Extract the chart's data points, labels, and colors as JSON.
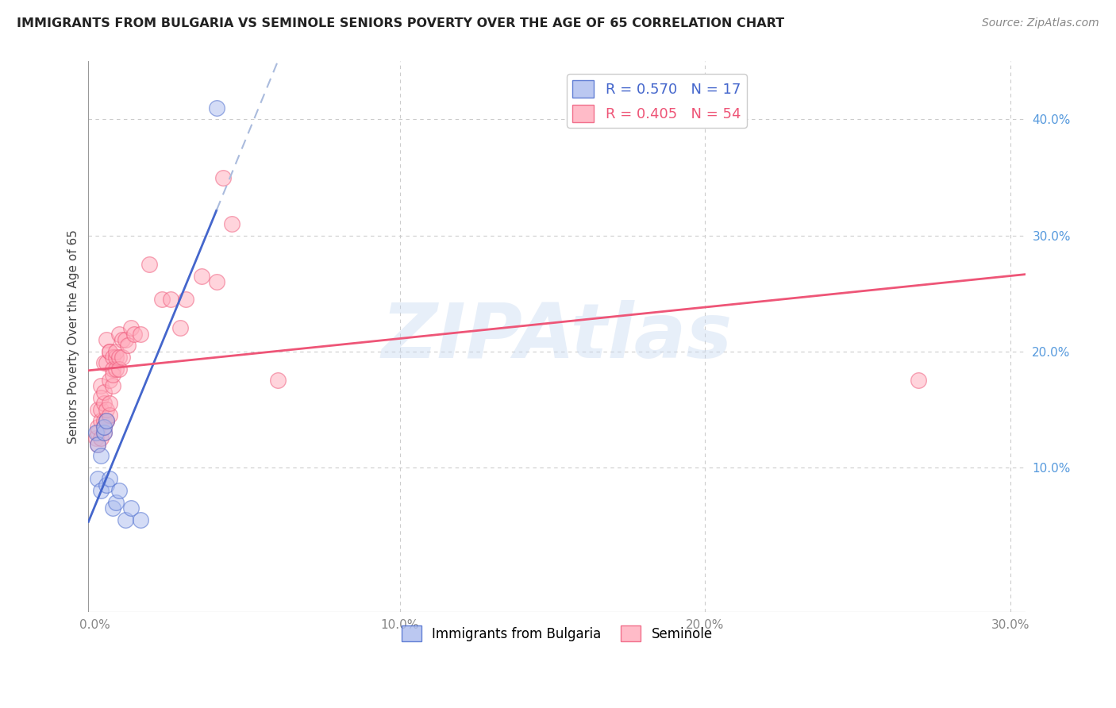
{
  "title": "IMMIGRANTS FROM BULGARIA VS SEMINOLE SENIORS POVERTY OVER THE AGE OF 65 CORRELATION CHART",
  "source": "Source: ZipAtlas.com",
  "ylabel": "Seniors Poverty Over the Age of 65",
  "xlim": [
    -0.002,
    0.305
  ],
  "ylim": [
    -0.025,
    0.45
  ],
  "watermark": "ZIPAtlas",
  "legend1_label": "R = 0.570   N = 17",
  "legend2_label": "R = 0.405   N = 54",
  "legend1_color": "#aabbee",
  "legend2_color": "#ffaabb",
  "regression1_color": "#4466cc",
  "regression2_color": "#ee5577",
  "bg_color": "#ffffff",
  "grid_color": "#cccccc",
  "ytick_color": "#5599dd",
  "xtick_color": "#888888",
  "bulgaria_points": [
    [
      0.0005,
      0.13
    ],
    [
      0.001,
      0.09
    ],
    [
      0.001,
      0.12
    ],
    [
      0.002,
      0.08
    ],
    [
      0.002,
      0.11
    ],
    [
      0.003,
      0.13
    ],
    [
      0.003,
      0.135
    ],
    [
      0.004,
      0.14
    ],
    [
      0.004,
      0.085
    ],
    [
      0.005,
      0.09
    ],
    [
      0.006,
      0.065
    ],
    [
      0.007,
      0.07
    ],
    [
      0.008,
      0.08
    ],
    [
      0.01,
      0.055
    ],
    [
      0.012,
      0.065
    ],
    [
      0.015,
      0.055
    ],
    [
      0.04,
      0.41
    ]
  ],
  "seminole_points": [
    [
      0.0005,
      0.125
    ],
    [
      0.001,
      0.13
    ],
    [
      0.001,
      0.135
    ],
    [
      0.001,
      0.12
    ],
    [
      0.001,
      0.15
    ],
    [
      0.002,
      0.17
    ],
    [
      0.002,
      0.125
    ],
    [
      0.002,
      0.14
    ],
    [
      0.002,
      0.15
    ],
    [
      0.002,
      0.16
    ],
    [
      0.003,
      0.19
    ],
    [
      0.003,
      0.13
    ],
    [
      0.003,
      0.14
    ],
    [
      0.003,
      0.155
    ],
    [
      0.003,
      0.165
    ],
    [
      0.003,
      0.135
    ],
    [
      0.004,
      0.14
    ],
    [
      0.004,
      0.19
    ],
    [
      0.004,
      0.21
    ],
    [
      0.004,
      0.14
    ],
    [
      0.004,
      0.15
    ],
    [
      0.005,
      0.2
    ],
    [
      0.005,
      0.145
    ],
    [
      0.005,
      0.2
    ],
    [
      0.005,
      0.155
    ],
    [
      0.005,
      0.175
    ],
    [
      0.006,
      0.195
    ],
    [
      0.006,
      0.17
    ],
    [
      0.006,
      0.185
    ],
    [
      0.006,
      0.18
    ],
    [
      0.007,
      0.185
    ],
    [
      0.007,
      0.195
    ],
    [
      0.007,
      0.2
    ],
    [
      0.008,
      0.195
    ],
    [
      0.008,
      0.215
    ],
    [
      0.008,
      0.185
    ],
    [
      0.009,
      0.21
    ],
    [
      0.009,
      0.195
    ],
    [
      0.01,
      0.21
    ],
    [
      0.011,
      0.205
    ],
    [
      0.012,
      0.22
    ],
    [
      0.013,
      0.215
    ],
    [
      0.015,
      0.215
    ],
    [
      0.018,
      0.275
    ],
    [
      0.022,
      0.245
    ],
    [
      0.025,
      0.245
    ],
    [
      0.028,
      0.22
    ],
    [
      0.03,
      0.245
    ],
    [
      0.035,
      0.265
    ],
    [
      0.04,
      0.26
    ],
    [
      0.042,
      0.35
    ],
    [
      0.045,
      0.31
    ],
    [
      0.06,
      0.175
    ],
    [
      0.27,
      0.175
    ]
  ],
  "title_fontsize": 11.5,
  "axis_label_fontsize": 11,
  "tick_fontsize": 11,
  "legend_fontsize": 13
}
